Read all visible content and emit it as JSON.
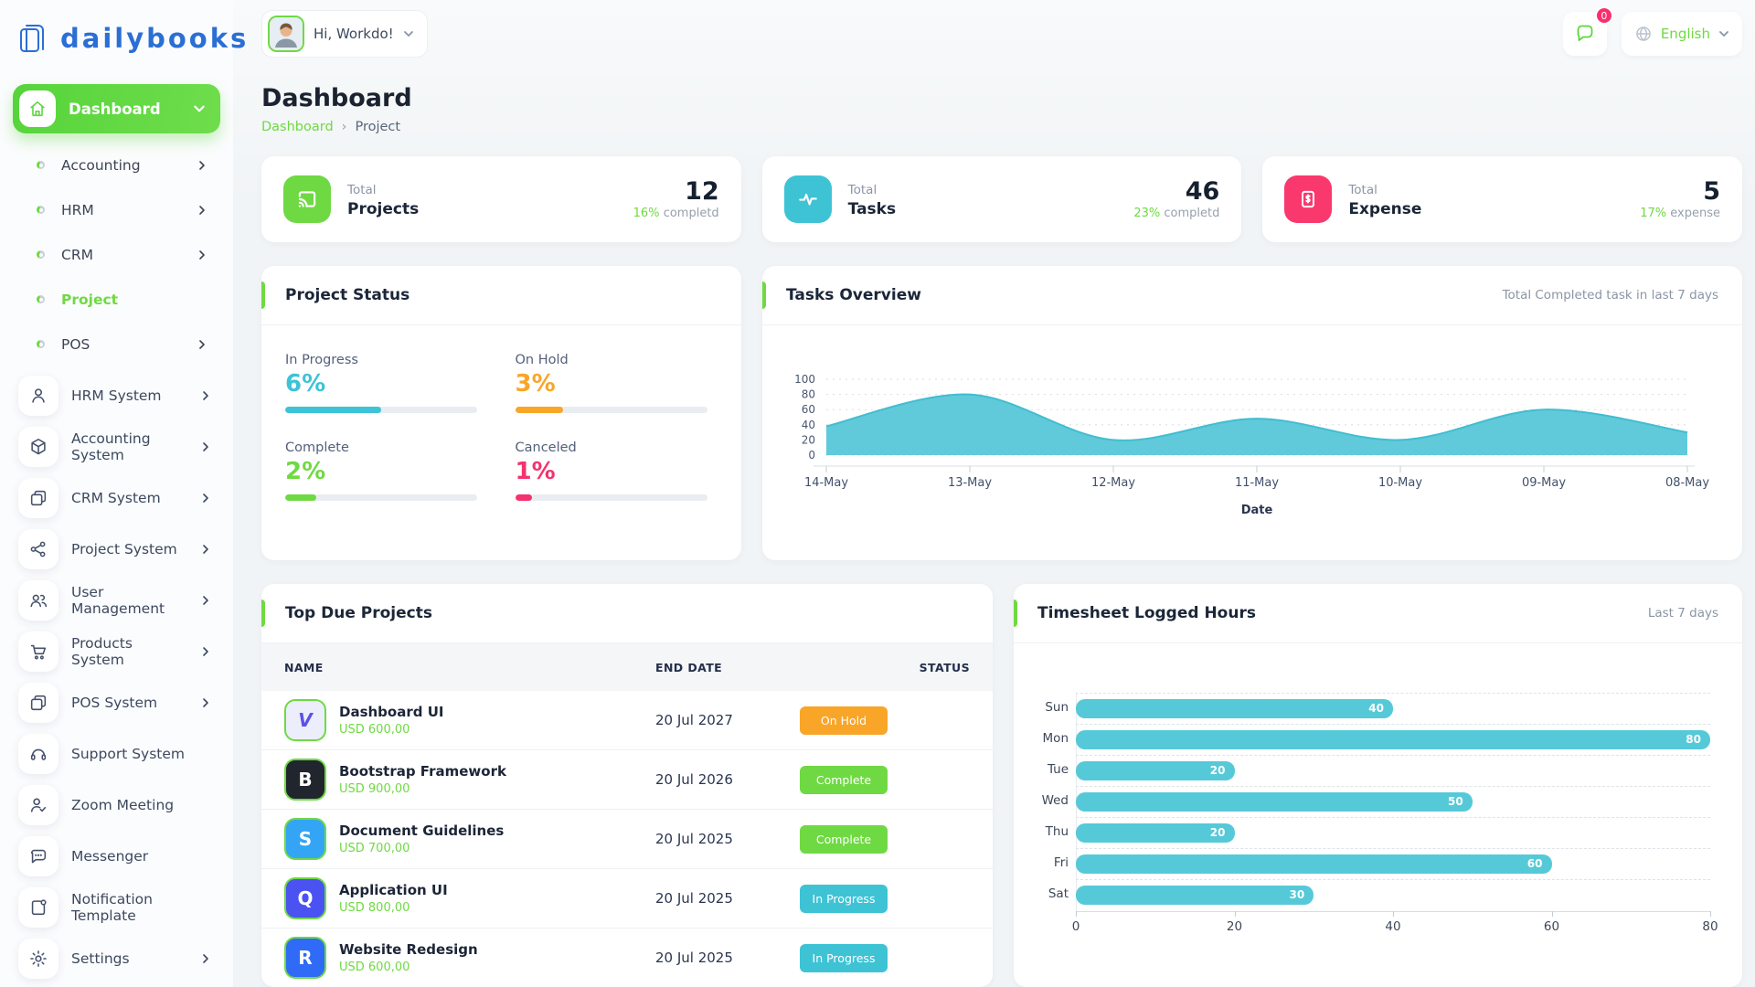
{
  "colors": {
    "primary_green": "#6fd943",
    "teal": "#3ec3d5",
    "orange": "#f9a528",
    "pink": "#f5326e",
    "brand_blue": "#2b6fd4"
  },
  "header": {
    "logo_text": "dailybooks",
    "greeting": "Hi, Workdo!",
    "notification_badge": "0",
    "language": "English"
  },
  "sidebar": {
    "dashboard_label": "Dashboard",
    "sub_items": [
      {
        "label": "Accounting",
        "chevron": true,
        "active": false
      },
      {
        "label": "HRM",
        "chevron": true,
        "active": false
      },
      {
        "label": "CRM",
        "chevron": true,
        "active": false
      },
      {
        "label": "Project",
        "chevron": false,
        "active": true
      },
      {
        "label": "POS",
        "chevron": true,
        "active": false
      }
    ],
    "modules": [
      {
        "label": "HRM System",
        "icon": "user-icon",
        "chevron": true
      },
      {
        "label": "Accounting System",
        "icon": "cube-icon",
        "chevron": true
      },
      {
        "label": "CRM System",
        "icon": "card-icon",
        "chevron": true
      },
      {
        "label": "Project System",
        "icon": "share-icon",
        "chevron": true
      },
      {
        "label": "User Management",
        "icon": "users-icon",
        "chevron": true
      },
      {
        "label": "Products System",
        "icon": "cart-icon",
        "chevron": true
      },
      {
        "label": "POS System",
        "icon": "card-icon",
        "chevron": true
      },
      {
        "label": "Support System",
        "icon": "headset-icon",
        "chevron": false
      },
      {
        "label": "Zoom Meeting",
        "icon": "user-check-icon",
        "chevron": false
      },
      {
        "label": "Messenger",
        "icon": "chat-icon",
        "chevron": false
      },
      {
        "label": "Notification Template",
        "icon": "template-icon",
        "chevron": false
      },
      {
        "label": "Settings",
        "icon": "gear-icon",
        "chevron": true
      }
    ]
  },
  "page": {
    "title": "Dashboard",
    "breadcrumb": {
      "home": "Dashboard",
      "current": "Project"
    }
  },
  "stat_cards": [
    {
      "icon": "cast-icon",
      "icon_bg": "#6fd943",
      "label_top": "Total",
      "label": "Projects",
      "value": "12",
      "sub_highlight": "16%",
      "sub_text": "completd"
    },
    {
      "icon": "activity-icon",
      "icon_bg": "#3ec3d5",
      "label_top": "Total",
      "label": "Tasks",
      "value": "46",
      "sub_highlight": "23%",
      "sub_text": "completd"
    },
    {
      "icon": "invoice-icon",
      "icon_bg": "#f9386e",
      "label_top": "Total",
      "label": "Expense",
      "value": "5",
      "sub_highlight": "17%",
      "sub_text": "expense"
    }
  ],
  "project_status": {
    "title": "Project Status",
    "items": [
      {
        "label": "In Progress",
        "value": "6%",
        "color": "#3dc3d6",
        "fill_pct": 50
      },
      {
        "label": "On Hold",
        "value": "3%",
        "color": "#f9a528",
        "fill_pct": 25
      },
      {
        "label": "Complete",
        "value": "2%",
        "color": "#6fd943",
        "fill_pct": 16
      },
      {
        "label": "Canceled",
        "value": "1%",
        "color": "#f5326e",
        "fill_pct": 9
      }
    ]
  },
  "tasks_overview": {
    "title": "Tasks Overview",
    "subtitle": "Total Completed task in last 7 days"
  },
  "top_due_projects": {
    "title": "Top Due Projects",
    "columns": [
      "NAME",
      "END DATE",
      "STATUS"
    ],
    "rows": [
      {
        "name": "Dashboard UI",
        "amount": "USD 600,00",
        "end_date": "20 Jul 2027",
        "status": "On Hold",
        "status_color": "#f9a528",
        "avatar": {
          "glyph": "V",
          "bg": "#eceefc",
          "fg": "#5b51e8",
          "italic": true
        }
      },
      {
        "name": "Bootstrap Framework",
        "amount": "USD 900,00",
        "end_date": "20 Jul 2026",
        "status": "Complete",
        "status_color": "#6fd943",
        "avatar": {
          "glyph": "B",
          "bg": "#21252e",
          "fg": "#ffffff",
          "italic": false
        }
      },
      {
        "name": "Document Guidelines",
        "amount": "USD 700,00",
        "end_date": "20 Jul 2025",
        "status": "Complete",
        "status_color": "#6fd943",
        "avatar": {
          "glyph": "S",
          "bg": "#34a5f5",
          "fg": "#ffffff",
          "italic": false
        }
      },
      {
        "name": "Application UI",
        "amount": "USD 800,00",
        "end_date": "20 Jul 2025",
        "status": "In Progress",
        "status_color": "#3ec3d5",
        "avatar": {
          "glyph": "Q",
          "bg": "#4a52f2",
          "fg": "#ffffff",
          "italic": false
        }
      },
      {
        "name": "Website Redesign",
        "amount": "USD 600,00",
        "end_date": "20 Jul 2025",
        "status": "In Progress",
        "status_color": "#3ec3d5",
        "avatar": {
          "glyph": "R",
          "bg": "#2f6bf6",
          "fg": "#ffffff",
          "italic": false
        }
      }
    ]
  },
  "timesheet": {
    "title": "Timesheet Logged Hours",
    "subtitle": "Last 7 days"
  },
  "chart_data": [
    {
      "id": "tasks_overview_chart",
      "type": "area",
      "title": "Tasks Overview",
      "x": [
        "14-May",
        "13-May",
        "12-May",
        "11-May",
        "10-May",
        "09-May",
        "08-May"
      ],
      "values": [
        38,
        80,
        20,
        48,
        20,
        60,
        30
      ],
      "ylim": [
        0,
        100
      ],
      "yticks": [
        0,
        20,
        40,
        60,
        80,
        100
      ],
      "xlabel": "Date",
      "color": "#57c7d8",
      "grid": "dashed-horizontal",
      "legend": "none"
    },
    {
      "id": "timesheet_chart",
      "type": "bar",
      "orientation": "horizontal",
      "categories": [
        "Sun",
        "Mon",
        "Tue",
        "Wed",
        "Thu",
        "Fri",
        "Sat"
      ],
      "values": [
        40,
        80,
        20,
        50,
        20,
        60,
        30
      ],
      "xlim": [
        0,
        80
      ],
      "xticks": [
        0,
        20,
        40,
        60,
        80
      ],
      "color": "#56c9d8",
      "value_labels": true,
      "grid": "dashed"
    }
  ]
}
